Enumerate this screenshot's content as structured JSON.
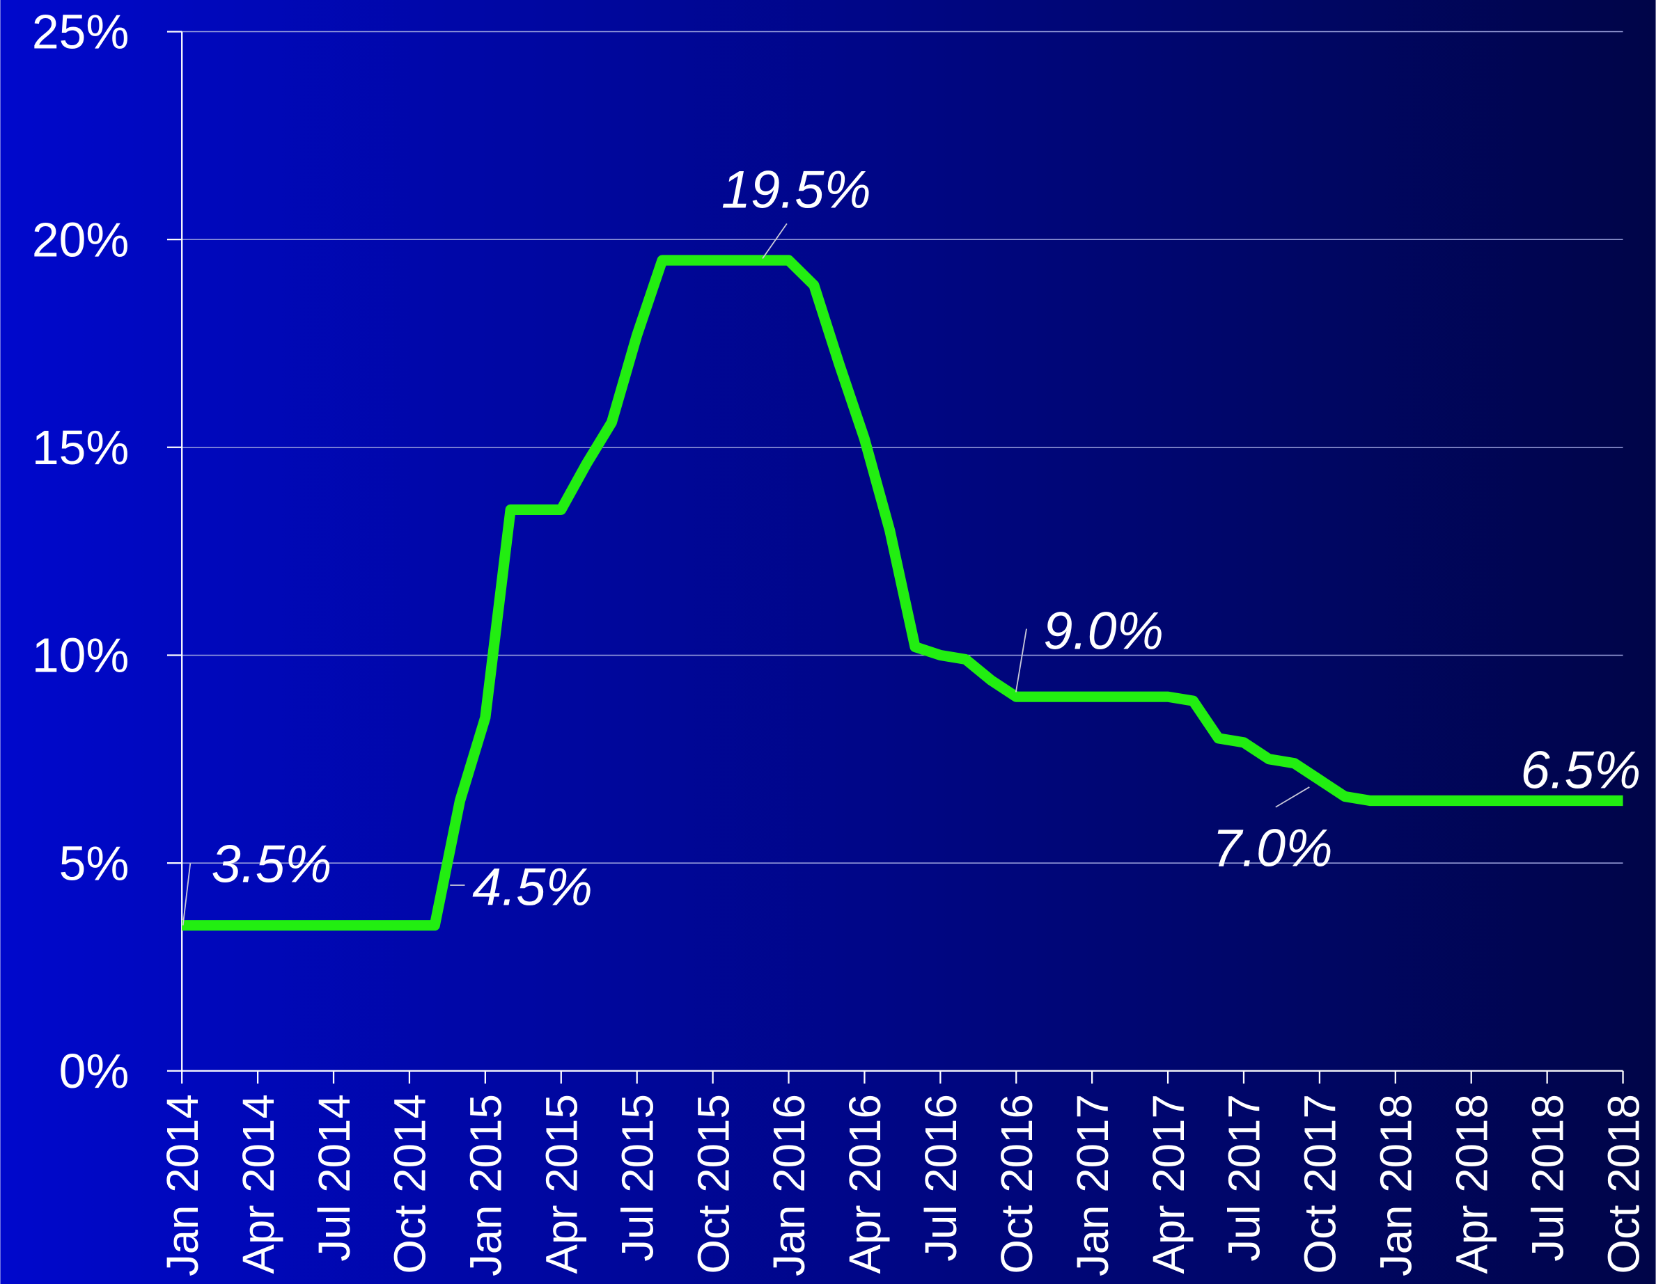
{
  "chart_data": {
    "type": "line",
    "x": [
      "2014-01",
      "2014-02",
      "2014-03",
      "2014-04",
      "2014-05",
      "2014-06",
      "2014-07",
      "2014-08",
      "2014-09",
      "2014-10",
      "2014-11",
      "2014-12",
      "2015-01",
      "2015-02",
      "2015-03",
      "2015-04",
      "2015-05",
      "2015-06",
      "2015-07",
      "2015-08",
      "2015-09",
      "2015-10",
      "2015-11",
      "2015-12",
      "2016-01",
      "2016-02",
      "2016-03",
      "2016-04",
      "2016-05",
      "2016-06",
      "2016-07",
      "2016-08",
      "2016-09",
      "2016-10",
      "2016-11",
      "2016-12",
      "2017-01",
      "2017-02",
      "2017-03",
      "2017-04",
      "2017-05",
      "2017-06",
      "2017-07",
      "2017-08",
      "2017-09",
      "2017-10",
      "2017-11",
      "2017-12",
      "2018-01",
      "2018-02",
      "2018-03",
      "2018-04",
      "2018-05",
      "2018-06",
      "2018-07",
      "2018-08",
      "2018-09",
      "2018-10"
    ],
    "series": [
      {
        "color": "#22ee11",
        "values": [
          3.5,
          3.5,
          3.5,
          3.5,
          3.5,
          3.5,
          3.5,
          3.5,
          3.5,
          3.5,
          3.5,
          6.5,
          8.5,
          13.5,
          13.5,
          13.5,
          14.6,
          15.6,
          17.7,
          19.5,
          19.5,
          19.5,
          19.5,
          19.5,
          19.5,
          18.9,
          17,
          15.2,
          13,
          10.2,
          10,
          9.9,
          9.4,
          9,
          9,
          9,
          9,
          9,
          9,
          9,
          8.9,
          8,
          7.9,
          7.5,
          7.4,
          7,
          6.6,
          6.5,
          6.5,
          6.5,
          6.5,
          6.5,
          6.5,
          6.5,
          6.5,
          6.5,
          6.5,
          6.5
        ]
      }
    ],
    "xlim": [
      "2014-01",
      "2018-10"
    ],
    "xticks": [
      {
        "value": "2014-01",
        "label": "Jan 2014"
      },
      {
        "value": "2014-04",
        "label": "Apr 2014"
      },
      {
        "value": "2014-07",
        "label": "Jul 2014"
      },
      {
        "value": "2014-10",
        "label": "Oct 2014"
      },
      {
        "value": "2015-01",
        "label": "Jan 2015"
      },
      {
        "value": "2015-04",
        "label": "Apr 2015"
      },
      {
        "value": "2015-07",
        "label": "Jul 2015"
      },
      {
        "value": "2015-10",
        "label": "Oct 2015"
      },
      {
        "value": "2016-01",
        "label": "Jan 2016"
      },
      {
        "value": "2016-04",
        "label": "Apr 2016"
      },
      {
        "value": "2016-07",
        "label": "Jul 2016"
      },
      {
        "value": "2016-10",
        "label": "Oct 2016"
      },
      {
        "value": "2017-01",
        "label": "Jan 2017"
      },
      {
        "value": "2017-04",
        "label": "Apr 2017"
      },
      {
        "value": "2017-07",
        "label": "Jul 2017"
      },
      {
        "value": "2017-10",
        "label": "Oct 2017"
      },
      {
        "value": "2018-01",
        "label": "Jan 2018"
      },
      {
        "value": "2018-04",
        "label": "Apr 2018"
      },
      {
        "value": "2018-07",
        "label": "Jul 2018"
      },
      {
        "value": "2018-10",
        "label": "Oct 2018"
      }
    ],
    "ylim": [
      0,
      25
    ],
    "yticks": [
      {
        "value": 0,
        "label": "0%"
      },
      {
        "value": 5,
        "label": "5%"
      },
      {
        "value": 10,
        "label": "10%"
      },
      {
        "value": 15,
        "label": "15%"
      },
      {
        "value": 20,
        "label": "20%"
      },
      {
        "value": 25,
        "label": "25%"
      }
    ],
    "grid": true,
    "annotations": [
      "3.5%",
      "4.5%",
      "19.5%",
      "9.0%",
      "7.0%",
      "6.5%"
    ]
  }
}
